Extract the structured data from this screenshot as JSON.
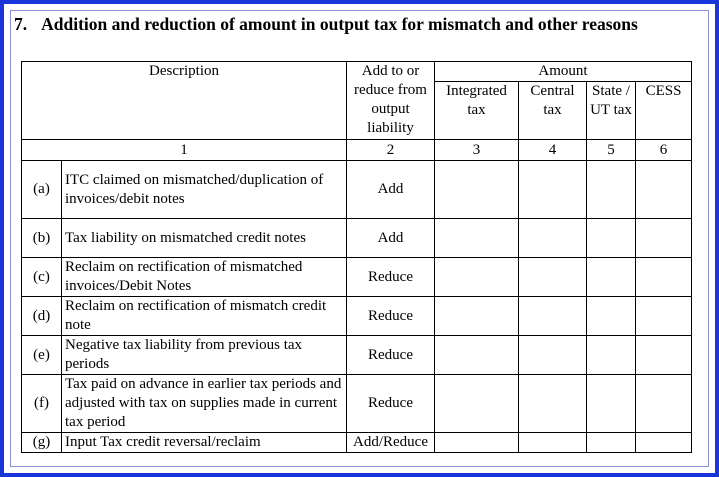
{
  "section": {
    "number": "7.",
    "title": "Addition and reduction of amount in output tax for mismatch and other reasons"
  },
  "table": {
    "headers": {
      "description": "Description",
      "add_reduce": "Add to or reduce from output liability",
      "amount": "Amount",
      "integrated_tax": "Integrated tax",
      "central_tax": "Central tax",
      "state_ut_tax": "State / UT tax",
      "cess": "CESS"
    },
    "column_numbers": [
      "1",
      "2",
      "3",
      "4",
      "5",
      "6"
    ],
    "rows": [
      {
        "label": "(a)",
        "description": "ITC claimed on mismatched/duplication of invoices/debit notes",
        "action": "Add"
      },
      {
        "label": "(b)",
        "description": "Tax liability on mismatched credit notes",
        "action": "Add"
      },
      {
        "label": "(c)",
        "description": "Reclaim on rectification of mismatched invoices/Debit Notes",
        "action": "Reduce"
      },
      {
        "label": "(d)",
        "description": "Reclaim on rectification of mismatch credit note",
        "action": "Reduce"
      },
      {
        "label": "(e)",
        "description": "Negative tax liability from previous tax periods",
        "action": "Reduce"
      },
      {
        "label": "(f)",
        "description": "Tax paid on advance in earlier tax periods and adjusted with tax on supplies made in current tax period",
        "action": "Reduce"
      },
      {
        "label": "(g)",
        "description": "Input Tax credit reversal/reclaim",
        "action": "Add/Reduce"
      }
    ]
  },
  "colors": {
    "frame_border": "#1a35d8"
  }
}
